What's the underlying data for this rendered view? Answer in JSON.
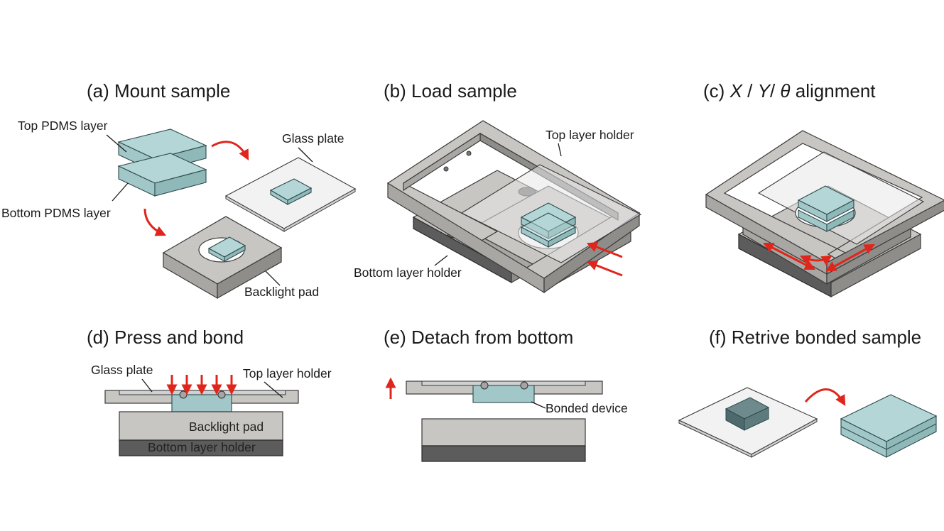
{
  "panels": {
    "a": {
      "title": "(a) Mount sample",
      "labels": {
        "top_pdms": "Top PDMS layer",
        "bottom_pdms": "Bottom PDMS layer",
        "glass_plate": "Glass plate",
        "backlight_pad": "Backlight pad"
      }
    },
    "b": {
      "title": "(b) Load sample",
      "labels": {
        "top_holder": "Top layer holder",
        "bottom_holder": "Bottom layer holder"
      }
    },
    "c": {
      "title_prefix": "(c)",
      "title_x": "X",
      "title_sep1": "/",
      "title_y": "Y",
      "title_sep2": "/",
      "title_theta": "θ",
      "title_suffix": "alignment"
    },
    "d": {
      "title": "(d) Press and bond",
      "labels": {
        "glass_plate": "Glass plate",
        "top_holder": "Top layer holder",
        "backlight_pad": "Backlight pad",
        "bottom_holder": "Bottom layer holder"
      }
    },
    "e": {
      "title": "(e) Detach from bottom",
      "labels": {
        "bonded_device": "Bonded device"
      }
    },
    "f": {
      "title": "(f) Retrive bonded sample"
    }
  },
  "colors": {
    "arrow": "#e0261c",
    "pdms": "#b5d6d6",
    "holder": "#c8c6c2",
    "dark_holder": "#5c5c5c"
  }
}
